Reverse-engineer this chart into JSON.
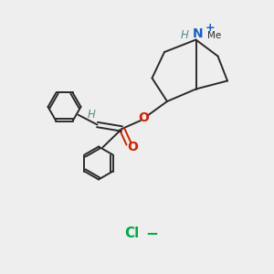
{
  "background_color": "#eeeeee",
  "bond_color": "#2a2a2a",
  "nitrogen_color": "#1a5fbf",
  "oxygen_color": "#cc2200",
  "hydrogen_label_color": "#5a8a8a",
  "chloride_color": "#00aa44",
  "figsize": [
    3.0,
    3.0
  ],
  "dpi": 100,
  "xlim": [
    0,
    10
  ],
  "ylim": [
    0,
    10
  ]
}
